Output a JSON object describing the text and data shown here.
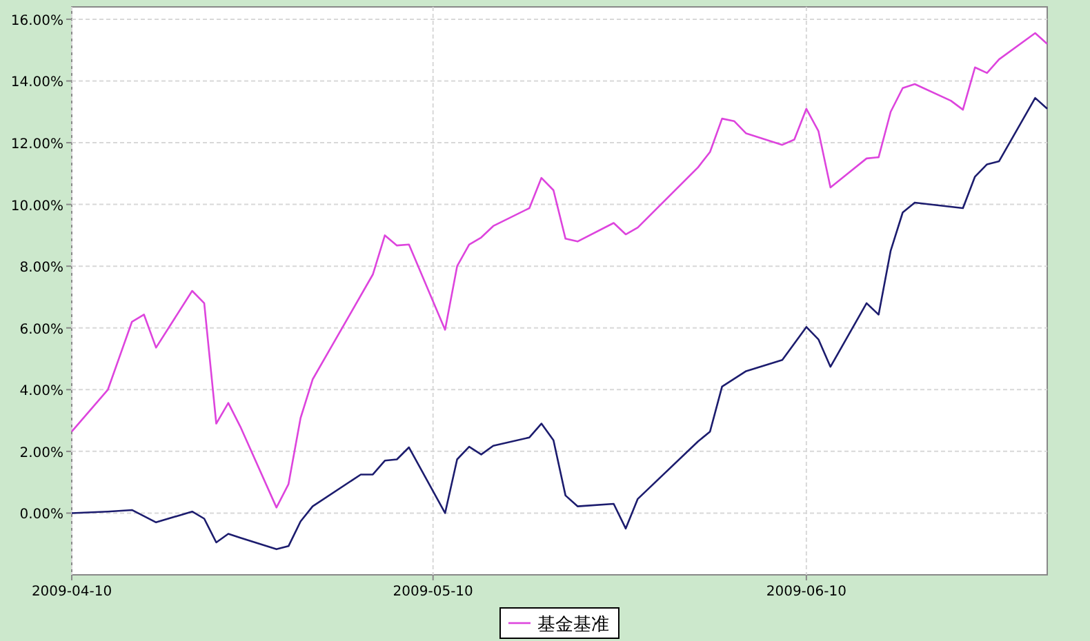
{
  "chart_data": {
    "type": "line",
    "xlim": [
      "2009-04-10",
      "2009-06-30"
    ],
    "ylim": [
      -2,
      16.4
    ],
    "xticks": [
      "2009-04-10",
      "2009-05-10",
      "2009-06-10"
    ],
    "yticks": [
      {
        "value": 0,
        "label": "0.00%"
      },
      {
        "value": 2,
        "label": "2.00%"
      },
      {
        "value": 4,
        "label": "4.00%"
      },
      {
        "value": 6,
        "label": "6.00%"
      },
      {
        "value": 8,
        "label": "8.00%"
      },
      {
        "value": 10,
        "label": "10.00%"
      },
      {
        "value": 12,
        "label": "12.00%"
      },
      {
        "value": 14,
        "label": "14.00%"
      },
      {
        "value": 16,
        "label": "16.00%"
      }
    ],
    "grid": true,
    "legend": "bottom",
    "series": [
      {
        "color": "#1c1c6e",
        "x": [
          "2009-04-10",
          "2009-04-13",
          "2009-04-15",
          "2009-04-16",
          "2009-04-17",
          "2009-04-20",
          "2009-04-21",
          "2009-04-22",
          "2009-04-23",
          "2009-04-24",
          "2009-04-27",
          "2009-04-28",
          "2009-04-29",
          "2009-04-30",
          "2009-05-04",
          "2009-05-05",
          "2009-05-06",
          "2009-05-07",
          "2009-05-08",
          "2009-05-11",
          "2009-05-12",
          "2009-05-13",
          "2009-05-14",
          "2009-05-15",
          "2009-05-18",
          "2009-05-19",
          "2009-05-20",
          "2009-05-21",
          "2009-05-22",
          "2009-05-25",
          "2009-05-26",
          "2009-05-27",
          "2009-06-01",
          "2009-06-02",
          "2009-06-03",
          "2009-06-05",
          "2009-06-08",
          "2009-06-10",
          "2009-06-11",
          "2009-06-12",
          "2009-06-15",
          "2009-06-16",
          "2009-06-17",
          "2009-06-18",
          "2009-06-19",
          "2009-06-23",
          "2009-06-24",
          "2009-06-25",
          "2009-06-26",
          "2009-06-29",
          "2009-06-30"
        ],
        "values": [
          0,
          0.05,
          0.1,
          -0.1,
          -0.3,
          0.05,
          -0.18,
          -0.95,
          -0.67,
          -0.8,
          -1.17,
          -1.07,
          -0.27,
          0.22,
          1.25,
          1.25,
          1.7,
          1.74,
          2.13,
          0,
          1.74,
          2.15,
          1.9,
          2.18,
          2.45,
          2.9,
          2.36,
          0.57,
          0.22,
          0.3,
          -0.5,
          0.46,
          2.32,
          2.64,
          4.1,
          4.6,
          4.96,
          6.03,
          5.63,
          4.74,
          6.8,
          6.43,
          8.5,
          9.74,
          10.06,
          9.88,
          10.9,
          11.3,
          11.4,
          13.45,
          13.1
        ]
      },
      {
        "name": "基金基准",
        "color": "#dd44dd",
        "x": [
          "2009-04-10",
          "2009-04-13",
          "2009-04-15",
          "2009-04-16",
          "2009-04-17",
          "2009-04-20",
          "2009-04-21",
          "2009-04-22",
          "2009-04-23",
          "2009-04-24",
          "2009-04-27",
          "2009-04-28",
          "2009-04-29",
          "2009-04-30",
          "2009-05-05",
          "2009-05-06",
          "2009-05-07",
          "2009-05-08",
          "2009-05-11",
          "2009-05-12",
          "2009-05-13",
          "2009-05-14",
          "2009-05-15",
          "2009-05-18",
          "2009-05-19",
          "2009-05-20",
          "2009-05-21",
          "2009-05-22",
          "2009-05-25",
          "2009-05-26",
          "2009-05-27",
          "2009-06-01",
          "2009-06-02",
          "2009-06-03",
          "2009-06-04",
          "2009-06-05",
          "2009-06-08",
          "2009-06-09",
          "2009-06-10",
          "2009-06-11",
          "2009-06-12",
          "2009-06-15",
          "2009-06-16",
          "2009-06-17",
          "2009-06-18",
          "2009-06-19",
          "2009-06-22",
          "2009-06-23",
          "2009-06-24",
          "2009-06-25",
          "2009-06-26",
          "2009-06-29",
          "2009-06-30"
        ],
        "values": [
          2.64,
          4.0,
          6.2,
          6.43,
          5.36,
          7.2,
          6.8,
          2.9,
          3.57,
          2.8,
          0.18,
          0.94,
          3.08,
          4.33,
          7.73,
          9.0,
          8.67,
          8.7,
          5.94,
          8.0,
          8.7,
          8.93,
          9.3,
          9.88,
          10.86,
          10.46,
          8.89,
          8.8,
          9.4,
          9.03,
          9.25,
          11.2,
          11.7,
          12.78,
          12.7,
          12.3,
          11.93,
          12.1,
          13.1,
          12.38,
          10.55,
          11.49,
          11.53,
          13.0,
          13.77,
          13.9,
          13.36,
          13.07,
          14.44,
          14.26,
          14.7,
          15.55,
          15.2
        ]
      }
    ]
  }
}
